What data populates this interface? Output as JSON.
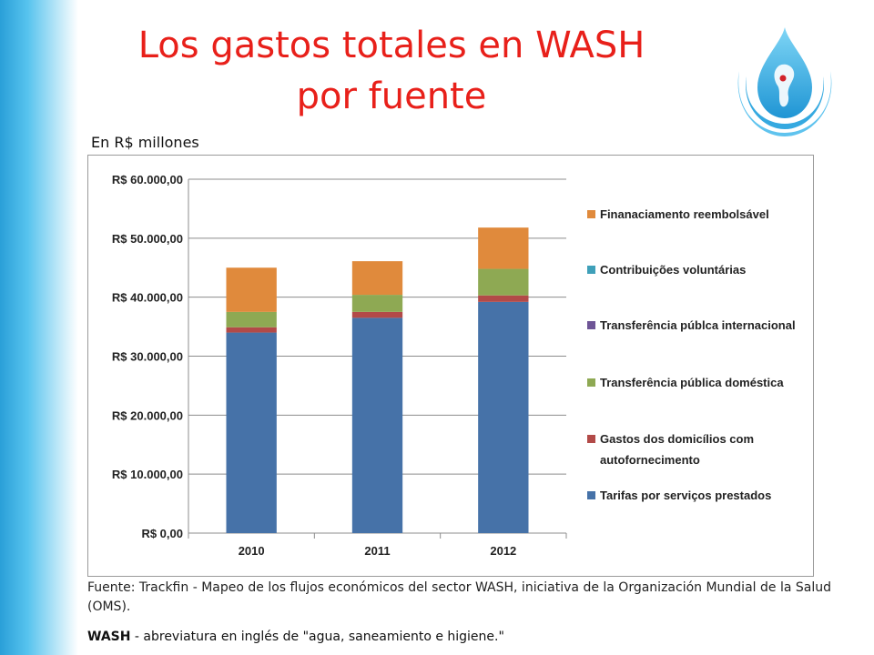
{
  "slide": {
    "title_line1": "Los gastos totales en WASH",
    "title_line2": "por fuente",
    "units_label": "En R$ millones",
    "source_text": "Fuente: Trackfin - Mapeo de los flujos económicos del sector WASH, iniciativa de la Organización Mundial de la Salud (OMS).",
    "wash_abbr": "WASH",
    "wash_note": " - abreviatura en inglés de \"agua, saneamiento e higiene.\"",
    "colors": {
      "title": "#e8201a",
      "side_band": "#2a9fd8"
    },
    "logo_icon": "water-drop-globe-icon"
  },
  "chart_data": {
    "type": "bar",
    "stacked": true,
    "categories": [
      "2010",
      "2011",
      "2012"
    ],
    "ylim": [
      0,
      60000
    ],
    "yticks": [
      0,
      10000,
      20000,
      30000,
      40000,
      50000,
      60000
    ],
    "ytick_labels": [
      "R$ 0,00",
      "R$ 10.000,00",
      "R$ 20.000,00",
      "R$ 30.000,00",
      "R$ 40.000,00",
      "R$ 50.000,00",
      "R$ 60.000,00"
    ],
    "grid": true,
    "legend_position": "right",
    "series": [
      {
        "name": "Tarifas por serviços prestados",
        "color": "#4672a8",
        "values": [
          34000,
          36500,
          39200
        ]
      },
      {
        "name": "Gastos dos domicílios com autofornecimento",
        "color": "#b24a48",
        "values": [
          900,
          1000,
          1100
        ]
      },
      {
        "name": "Transferência pública doméstica",
        "color": "#8ea953",
        "values": [
          2600,
          2900,
          4500
        ]
      },
      {
        "name": "Transferência públca internacional",
        "color": "#6e5596",
        "values": [
          0,
          0,
          0
        ]
      },
      {
        "name": "Contribuições voluntárias",
        "color": "#3fa0b9",
        "values": [
          0,
          0,
          0
        ]
      },
      {
        "name": "Finanaciamento reembolsável",
        "color": "#e08a3c",
        "values": [
          7500,
          5700,
          7000
        ]
      }
    ],
    "legend_order": [
      5,
      4,
      3,
      2,
      1,
      0
    ],
    "legend_lines": [
      [
        "Finanaciamento reembolsável"
      ],
      [
        "Contribuições voluntárias"
      ],
      [
        "Transferência públca internacional"
      ],
      [
        "Transferência pública doméstica"
      ],
      [
        "Gastos dos domicílios com",
        "autofornecimento"
      ],
      [
        "Tarifas por serviços prestados"
      ]
    ]
  }
}
